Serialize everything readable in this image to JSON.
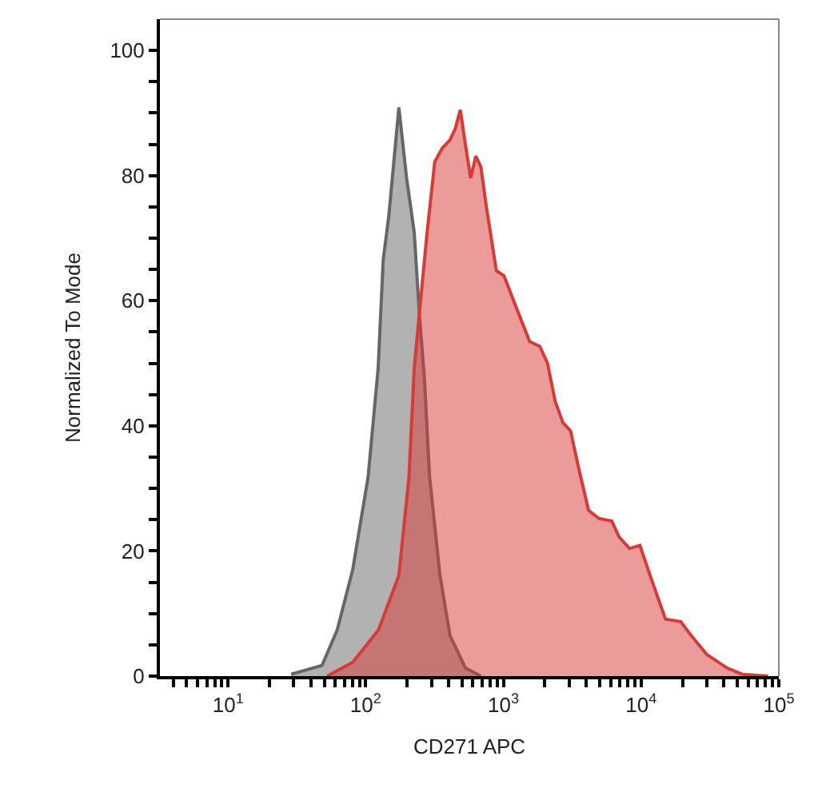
{
  "chart_data": {
    "type": "area",
    "xlabel": "CD271 APC",
    "ylabel": "Normalized To Mode",
    "log": "x",
    "xlim": [
      3.2,
      100000
    ],
    "ylim": [
      0,
      105
    ],
    "xticks": [
      {
        "value": 4,
        "label": null
      },
      {
        "value": 5,
        "label": null
      },
      {
        "value": 6,
        "label": null
      },
      {
        "value": 7,
        "label": null
      },
      {
        "value": 8,
        "label": null
      },
      {
        "value": 9,
        "label": null
      },
      {
        "value": 10,
        "label": "10$^{1}$"
      },
      {
        "value": 20,
        "label": null
      },
      {
        "value": 30,
        "label": null
      },
      {
        "value": 40,
        "label": null
      },
      {
        "value": 50,
        "label": null
      },
      {
        "value": 60,
        "label": null
      },
      {
        "value": 70,
        "label": null
      },
      {
        "value": 80,
        "label": null
      },
      {
        "value": 90,
        "label": null
      },
      {
        "value": 100,
        "label": "10$^{2}$"
      },
      {
        "value": 200,
        "label": null
      },
      {
        "value": 300,
        "label": null
      },
      {
        "value": 400,
        "label": null
      },
      {
        "value": 500,
        "label": null
      },
      {
        "value": 600,
        "label": null
      },
      {
        "value": 700,
        "label": null
      },
      {
        "value": 800,
        "label": null
      },
      {
        "value": 900,
        "label": null
      },
      {
        "value": 1000,
        "label": "10$^{3}$"
      },
      {
        "value": 2000,
        "label": null
      },
      {
        "value": 3000,
        "label": null
      },
      {
        "value": 4000,
        "label": null
      },
      {
        "value": 5000,
        "label": null
      },
      {
        "value": 6000,
        "label": null
      },
      {
        "value": 7000,
        "label": null
      },
      {
        "value": 8000,
        "label": null
      },
      {
        "value": 9000,
        "label": null
      },
      {
        "value": 10000,
        "label": "10$^{4}$"
      },
      {
        "value": 20000,
        "label": null
      },
      {
        "value": 30000,
        "label": null
      },
      {
        "value": 40000,
        "label": null
      },
      {
        "value": 50000,
        "label": null
      },
      {
        "value": 60000,
        "label": null
      },
      {
        "value": 70000,
        "label": null
      },
      {
        "value": 80000,
        "label": null
      },
      {
        "value": 90000,
        "label": null
      },
      {
        "value": 100000,
        "label": "10$^{5}$"
      }
    ],
    "yticks": [
      0,
      {
        "value": 5,
        "label": null
      },
      {
        "value": 10,
        "label": null
      },
      {
        "value": 15,
        "label": null
      },
      20,
      {
        "value": 25,
        "label": null
      },
      {
        "value": 30,
        "label": null
      },
      {
        "value": 35,
        "label": null
      },
      40,
      {
        "value": 45,
        "label": null
      },
      {
        "value": 50,
        "label": null
      },
      {
        "value": 55,
        "label": null
      },
      60,
      {
        "value": 65,
        "label": null
      },
      {
        "value": 70,
        "label": null
      },
      {
        "value": 75,
        "label": null
      },
      80,
      {
        "value": 85,
        "label": null
      },
      {
        "value": 90,
        "label": null
      },
      {
        "value": 95,
        "label": null
      },
      100
    ],
    "series": [
      {
        "color": "#666666",
        "x": [
          28.7,
          48.1,
          62.1,
          80.4,
          104,
          123,
          134,
          147,
          174,
          198,
          225,
          245,
          267,
          291,
          346,
          409,
          530,
          686
        ],
        "values": [
          0.3,
          1.7,
          7.4,
          17,
          31.8,
          49.2,
          66.6,
          73.5,
          90.9,
          79.6,
          70.9,
          57.9,
          47.4,
          31.8,
          16.1,
          6.5,
          1.3,
          0
        ]
      },
      {
        "color": "#d83a35",
        "x": [
          52.4,
          80.4,
          124,
          174,
          206,
          225,
          245,
          279,
          317,
          360,
          409,
          447,
          486,
          530,
          578,
          630,
          686,
          748,
          815,
          888,
          1009,
          1250,
          1549,
          1839,
          2090,
          2377,
          2703,
          3073,
          3497,
          4150,
          4932,
          6109,
          6934,
          8241,
          9795,
          11610,
          15030,
          19410,
          23070,
          29850,
          42070,
          54330,
          83560
        ],
        "values": [
          0,
          2.2,
          7.4,
          16.1,
          31.8,
          49.2,
          57.9,
          70.9,
          82.2,
          84.4,
          85.7,
          87.5,
          90.5,
          84.9,
          79.6,
          83.1,
          81.4,
          75.3,
          70.1,
          64.8,
          64.0,
          58.7,
          53.5,
          52.7,
          50.0,
          43.9,
          40.5,
          39.2,
          33.5,
          26.5,
          25.2,
          24.8,
          22.2,
          20.4,
          20.9,
          16.1,
          9.1,
          8.7,
          6.5,
          3.5,
          1.3,
          0.3,
          0
        ]
      }
    ]
  }
}
